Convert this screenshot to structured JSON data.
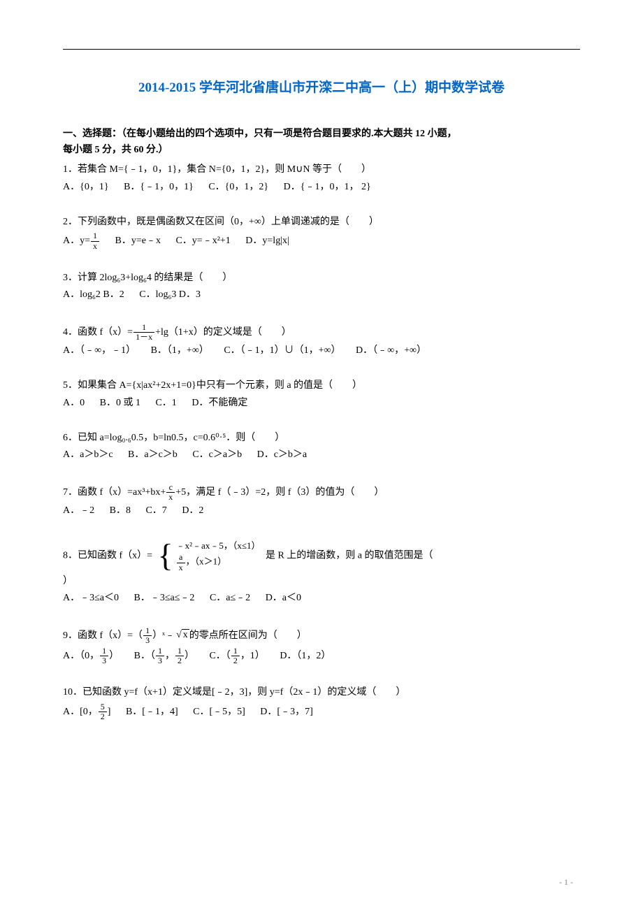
{
  "title": "2014-2015 学年河北省唐山市开滦二中高一（上）期中数学试卷",
  "section_header_line1": "一、选择题：（在每小题给出的四个选项中，只有一项是符合题目要求的.本大题共 12 小题，",
  "section_header_line2": "每小题 5 分，共 60 分.）",
  "page_number": "- 1 -",
  "questions": {
    "q1": {
      "text": "1．若集合 M={﹣1，0，1}，集合 N={0，1，2}，则 M∪N 等于（　　）",
      "A": "A．{0，1}",
      "B": "B．{﹣1，0，1}",
      "C": "C．{0，1，2}",
      "D": "D．{﹣1，0，1， 2}"
    },
    "q2": {
      "text": "2．下列函数中，既是偶函数又在区间（0，+∞）上单调递减的是（　　）",
      "A_pre": "A．y=",
      "A_frac_num": "1",
      "A_frac_den": "x",
      "B": "B．y=e﹣x",
      "C": "C．y=﹣x²+1",
      "D": "D．y=lg|x|"
    },
    "q3": {
      "text": "3．计算 2log₆3+log₆4 的结果是（　　）",
      "A": "A．log₆2",
      "B": "B．2",
      "C": "C．log₆3",
      "D": "D．3"
    },
    "q4": {
      "text_pre": "4．函数 f（x）=",
      "frac_num": "1",
      "frac_den": "1－x",
      "text_post": "+lg（1+x）的定义域是（　　）",
      "A": "A．（﹣∞，﹣1）",
      "B": "B．（1，+∞）",
      "C": "C．（﹣1，1）∪（1，+∞）",
      "D": "D．（﹣∞，+∞）"
    },
    "q5": {
      "text": "5．如果集合 A={x|ax²+2x+1=0}中只有一个元素，则 a 的值是（　　）",
      "A": "A．0",
      "B": "B．0 或 1",
      "C": "C．1",
      "D": "D．不能确定"
    },
    "q6": {
      "text": "6．已知 a=log₀.₆0.5，b=ln0.5，c=0.6⁰·⁵．则（　　）",
      "A": "A．a＞b＞c",
      "B": "B．a＞c＞b",
      "C": "C．c＞a＞b",
      "D": "D．c＞b＞a"
    },
    "q7": {
      "text_pre": "7．函数 f（x）=ax³+bx+",
      "frac_num": "c",
      "frac_den": "x",
      "text_post": "+5，满足 f（﹣3）=2，则 f（3）的值为（　　）",
      "A": "A．﹣2",
      "B": "B．8",
      "C": "C．7",
      "D": "D．2"
    },
    "q8": {
      "text_pre": "8．已知函数",
      "func_label": "f（x）=",
      "case1": "﹣x²﹣ax﹣5，（x≤1）",
      "case2_frac_num": "a",
      "case2_frac_den": "x",
      "case2_cond": "，（x＞1）",
      "text_post": "是 R 上的增函数，则 a 的取值范围是（　",
      "text_close": "）",
      "A": "A．﹣3≤a＜0",
      "B": "B．﹣3≤a≤﹣2",
      "C": "C．a≤﹣2",
      "D": "D．a＜0"
    },
    "q9": {
      "text_pre": "9．函数 f（x）=（",
      "base_frac_num": "1",
      "base_frac_den": "3",
      "text_mid": "）ˣ﹣",
      "radicand": "x",
      "text_post": "的零点所在区间为（　　）",
      "A_pre": "A．（0，",
      "A_frac_num": "1",
      "A_frac_den": "3",
      "A_post": "）",
      "B_pre": "B．（",
      "B_f1_num": "1",
      "B_f1_den": "3",
      "B_mid": "，",
      "B_f2_num": "1",
      "B_f2_den": "2",
      "B_post": "）",
      "C_pre": "C．（",
      "C_frac_num": "1",
      "C_frac_den": "2",
      "C_post": "，1）",
      "D": "D．（1，2）"
    },
    "q10": {
      "text": "10．已知函数 y=f（x+1）定义域是[﹣2，3]，则 y=f（2x﹣1）的定义域（　　）",
      "A_pre": "A．[0，",
      "A_frac_num": "5",
      "A_frac_den": "2",
      "A_post": "]",
      "B": "B．[﹣1，4]",
      "C": "C．[﹣5，5]",
      "D": "D．[﹣3，7]"
    }
  }
}
